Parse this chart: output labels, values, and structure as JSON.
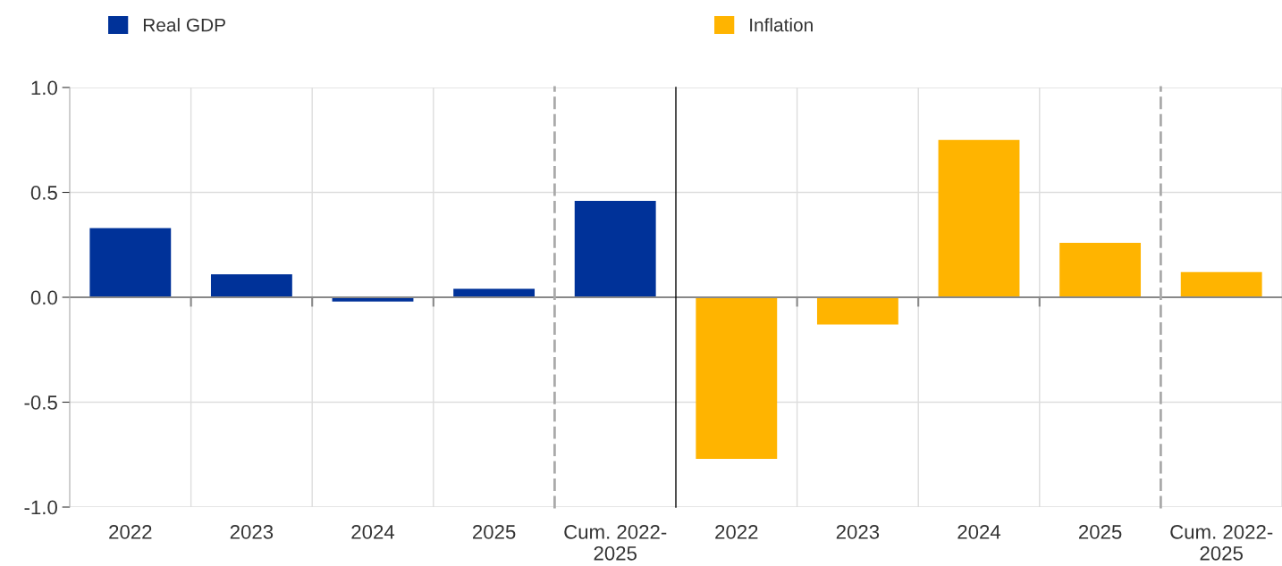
{
  "chart_data": [
    {
      "type": "bar",
      "categories": [
        "2022",
        "2023",
        "2024",
        "2025"
      ],
      "series": [
        {
          "name": "Real GDP",
          "color": "#003299",
          "values": [
            0.33,
            0.11,
            -0.02,
            0.04
          ]
        }
      ],
      "ylim": [
        -1.0,
        1.0
      ],
      "yticks": [
        {
          "value": -1.0,
          "label": "-1.0"
        },
        {
          "value": -0.5,
          "label": "-0.5"
        },
        {
          "value": 0.0,
          "label": "0.0"
        },
        {
          "value": 0.5,
          "label": "0.5"
        },
        {
          "value": 1.0,
          "label": "1.0"
        }
      ],
      "grid": true,
      "legend": "top"
    },
    {
      "type": "bar",
      "categories": [
        "Cum. 2022-\n2025"
      ],
      "series": [
        {
          "color": "#003299",
          "values": [
            0.46
          ]
        }
      ],
      "ylim": [
        -1.0,
        1.0
      ],
      "yticks": [
        -1,
        -0.5,
        0,
        0.5,
        1
      ],
      "tick_labels": "x",
      "grid": true
    },
    {
      "type": "bar",
      "categories": [
        "2022",
        "2023",
        "2024",
        "2025"
      ],
      "series": [
        {
          "name": "Inflation",
          "color": "#ffb400",
          "values": [
            -0.77,
            -0.13,
            0.75,
            0.26
          ]
        }
      ],
      "ylim": [
        -1.0,
        1.0
      ],
      "yticks": [
        -1,
        -0.5,
        0,
        0.5,
        1
      ],
      "tick_labels": "x",
      "grid": true,
      "legend": "top"
    },
    {
      "type": "bar",
      "categories": [
        "Cum. 2022-\n2025"
      ],
      "series": [
        {
          "color": "#ffb400",
          "values": [
            0.12
          ]
        }
      ],
      "ylim": [
        -1.0,
        1.0
      ],
      "yticks": [
        -1,
        -0.5,
        0,
        0.5,
        1
      ],
      "tick_labels": "x",
      "grid": true
    }
  ]
}
